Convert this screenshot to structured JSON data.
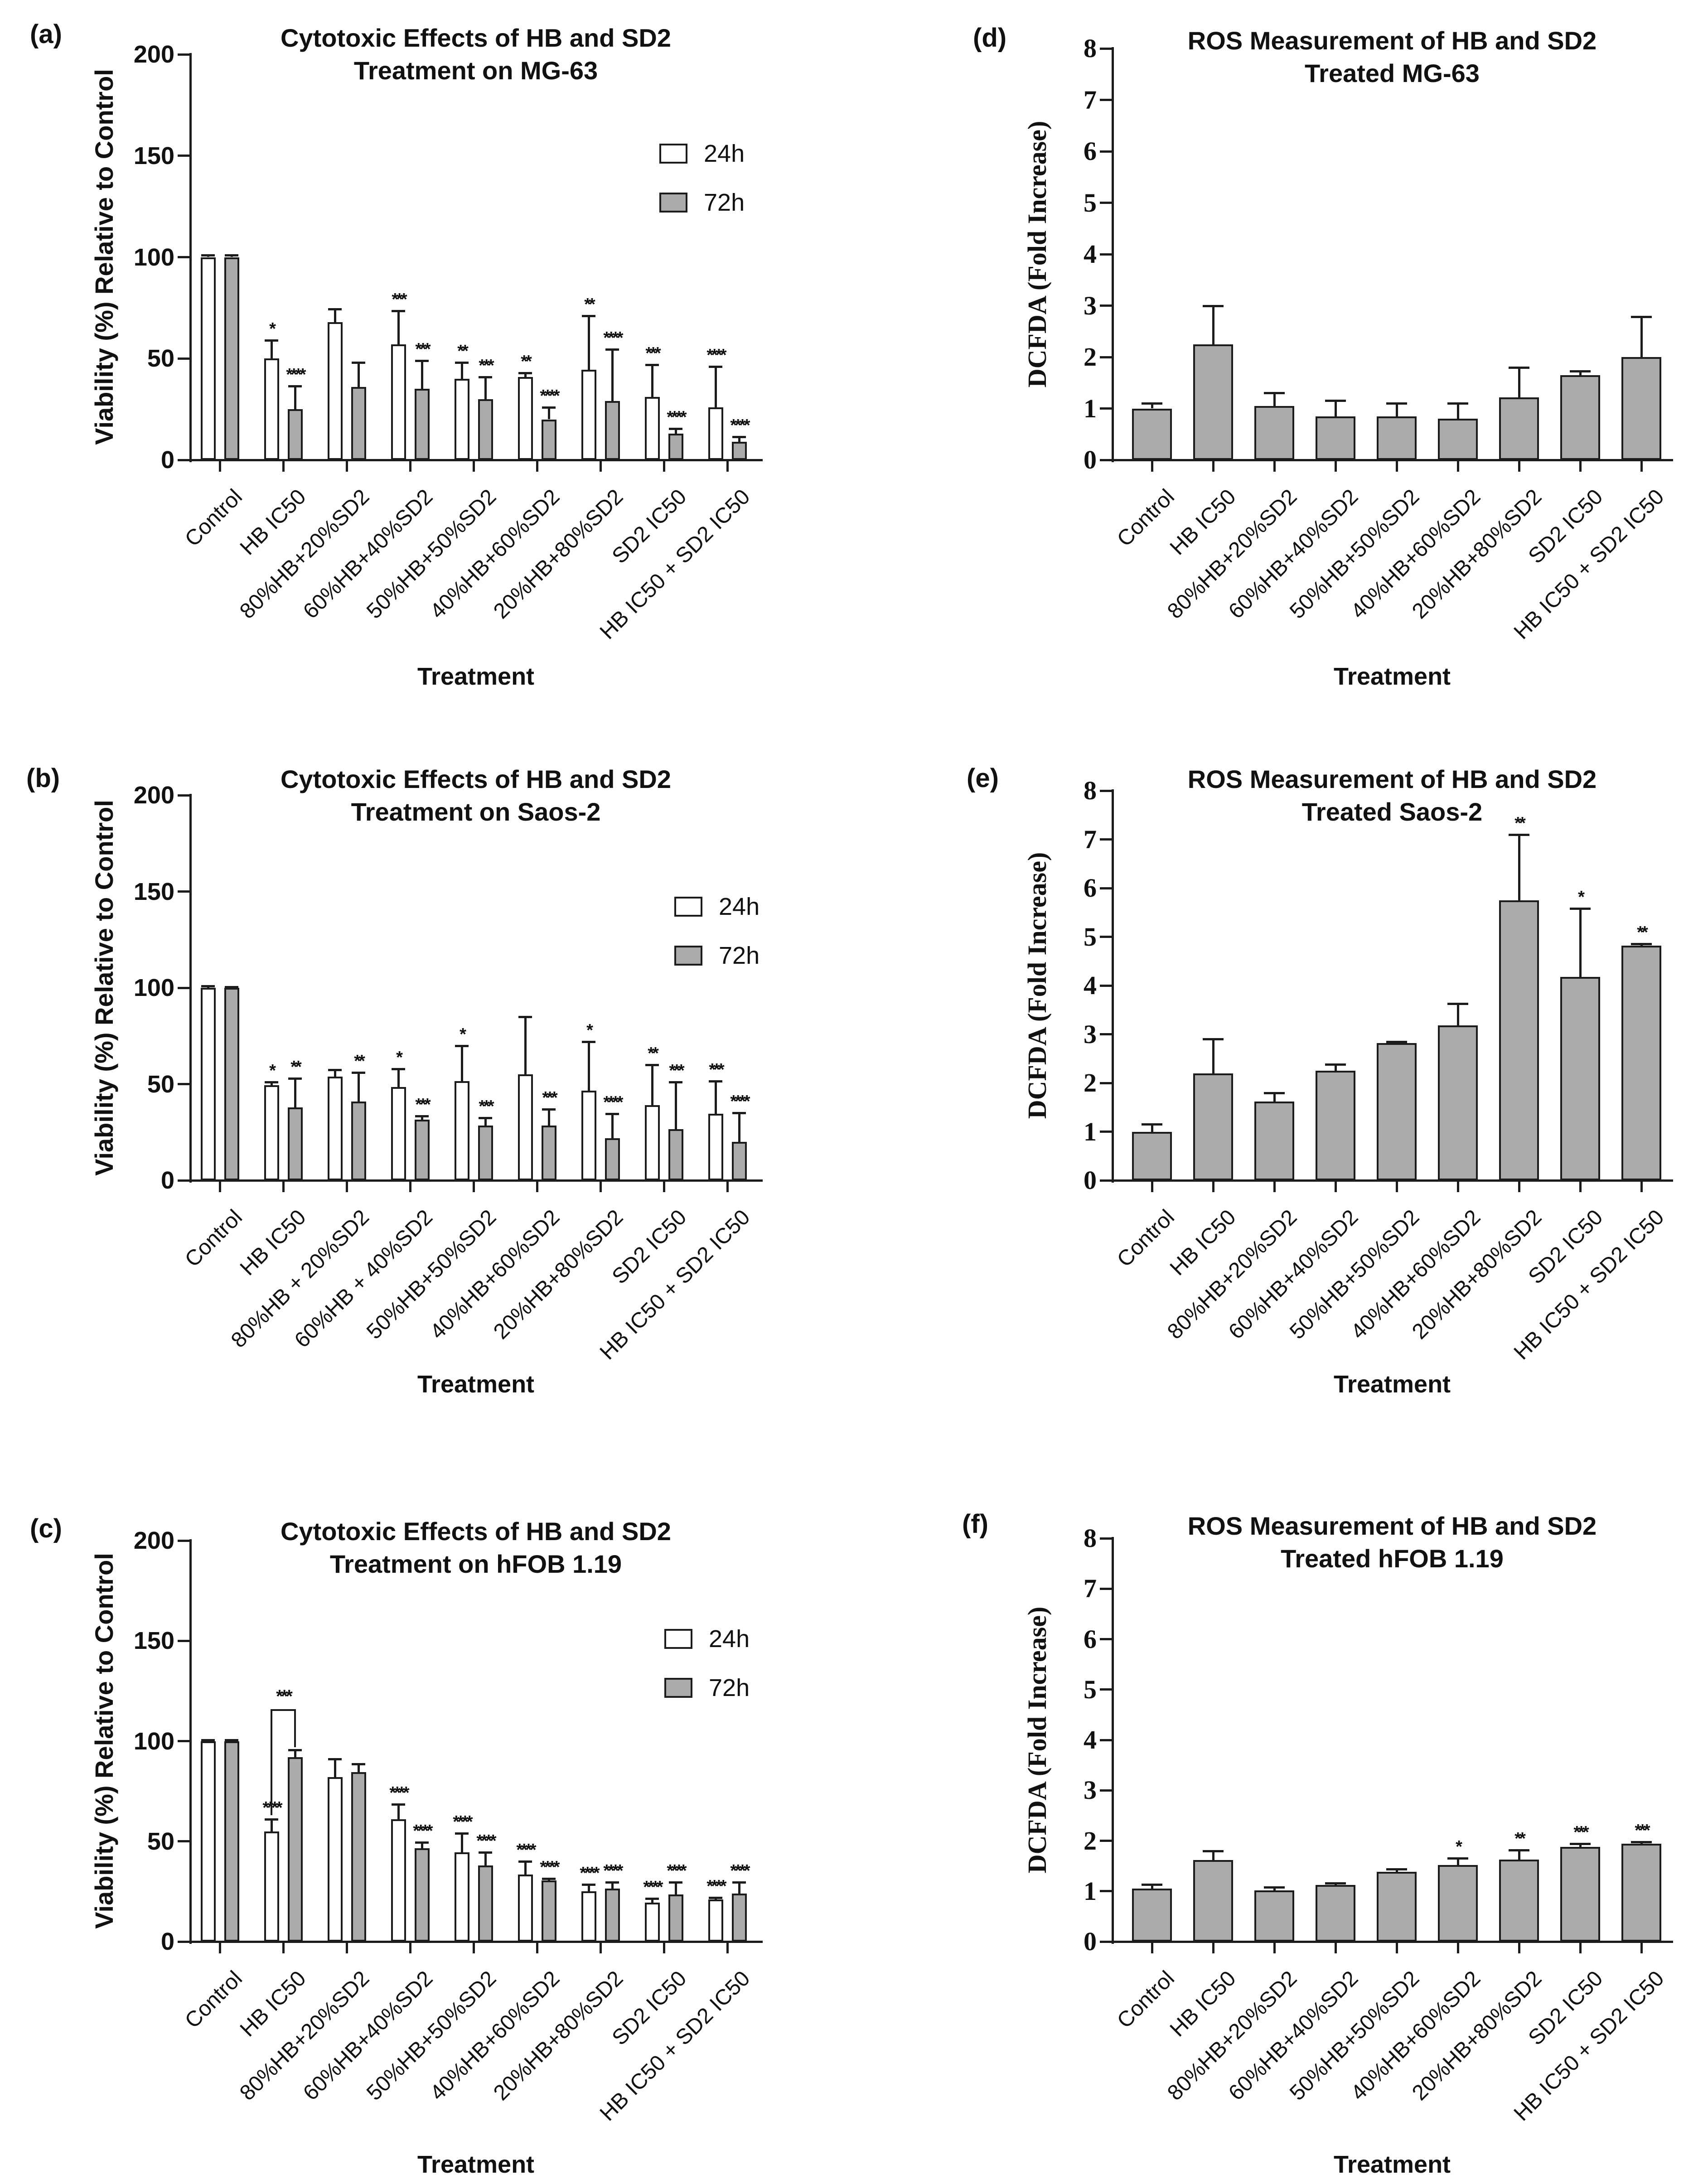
{
  "figure": {
    "background": "#ffffff",
    "colors": {
      "bar_gray": "#ababab",
      "bar_white": "#ffffff",
      "bar_border": "#1c1c1c",
      "axis": "#1c1c1c",
      "text": "#111111"
    },
    "legend": {
      "labels": [
        "24h",
        "72h"
      ]
    },
    "x_axis_title": "Treatment"
  },
  "chart_data": [
    {
      "id": "a",
      "panel_letter": "(a)",
      "type": "bar",
      "grouped": true,
      "title_lines": [
        "Cytotoxic Effects of HB and SD2",
        "Treatment on MG-63"
      ],
      "ylabel": "Viability (%) Relative to Control",
      "xlabel": "Treatment",
      "ylim": [
        0,
        200
      ],
      "yticks": [
        0,
        50,
        100,
        150,
        200
      ],
      "legend_position": "top-right-inside",
      "categories": [
        "Control",
        "HB IC50",
        "80%HB+20%SD2",
        "60%HB+40%SD2",
        "50%HB+50%SD2",
        "40%HB+60%SD2",
        "20%HB+80%SD2",
        "SD2 IC50",
        "HB IC50 + SD2 IC50"
      ],
      "series": [
        {
          "name": "24h",
          "fill": "#ffffff",
          "values": [
            100,
            50,
            68,
            57,
            40,
            41,
            44.5,
            31,
            26
          ],
          "errors": [
            1,
            9,
            6.5,
            16.5,
            8,
            2,
            26.5,
            16,
            20
          ],
          "sig": [
            "",
            "*",
            "",
            "***",
            "**",
            "**",
            "**",
            "***",
            "****"
          ]
        },
        {
          "name": "72h",
          "fill": "#ababab",
          "values": [
            100,
            25,
            36,
            35,
            30,
            20,
            29,
            13,
            9
          ],
          "errors": [
            1,
            11.5,
            12,
            14,
            11,
            6,
            25.5,
            2.5,
            2.5
          ],
          "sig": [
            "",
            "****",
            "",
            "***",
            "***",
            "****",
            "****",
            "****",
            "****"
          ]
        }
      ],
      "annotations": []
    },
    {
      "id": "b",
      "panel_letter": "(b)",
      "type": "bar",
      "grouped": true,
      "title_lines": [
        "Cytotoxic Effects of HB and SD2",
        "Treatment on Saos-2"
      ],
      "ylabel": "Viability (%) Relative to Control",
      "xlabel": "Treatment",
      "ylim": [
        0,
        200
      ],
      "yticks": [
        0,
        50,
        100,
        150,
        200
      ],
      "legend_position": "top-right-inside",
      "categories": [
        "Control",
        "HB IC50",
        "80%HB + 20%SD2",
        "60%HB + 40%SD2",
        "50%HB+50%SD2",
        "40%HB+60%SD2",
        "20%HB+80%SD2",
        "SD2 IC50",
        "HB IC50 + SD2 IC50"
      ],
      "series": [
        {
          "name": "24h",
          "fill": "#ffffff",
          "values": [
            100,
            49.5,
            54,
            48.5,
            51.5,
            55,
            46.5,
            39,
            34.5
          ],
          "errors": [
            1,
            1.5,
            3.5,
            9.5,
            18.5,
            30,
            25.5,
            21,
            17
          ],
          "sig": [
            "",
            "*",
            "",
            "*",
            "*",
            "",
            "*",
            "**",
            "***"
          ]
        },
        {
          "name": "72h",
          "fill": "#ababab",
          "values": [
            100,
            38,
            41,
            31.5,
            28.5,
            28.5,
            22,
            26.5,
            20
          ],
          "errors": [
            0.5,
            15,
            15,
            2,
            4,
            8.5,
            12.5,
            24.5,
            15
          ],
          "sig": [
            "",
            "**",
            "**",
            "***",
            "***",
            "***",
            "****",
            "***",
            "****"
          ]
        }
      ],
      "annotations": []
    },
    {
      "id": "c",
      "panel_letter": "(c)",
      "type": "bar",
      "grouped": true,
      "title_lines": [
        "Cytotoxic Effects of HB and SD2",
        "Treatment on hFOB 1.19"
      ],
      "ylabel": "Viability (%) Relative to Control",
      "xlabel": "Treatment",
      "ylim": [
        0,
        200
      ],
      "yticks": [
        0,
        50,
        100,
        150,
        200
      ],
      "legend_position": "top-right-inside",
      "categories": [
        "Control",
        "HB IC50",
        "80%HB+20%SD2",
        "60%HB+40%SD2",
        "50%HB+50%SD2",
        "40%HB+60%SD2",
        "20%HB+80%SD2",
        "SD2 IC50",
        "HB IC50 + SD2 IC50"
      ],
      "series": [
        {
          "name": "24h",
          "fill": "#ffffff",
          "values": [
            100,
            55,
            82,
            61,
            44.5,
            33.5,
            25,
            19.5,
            21
          ],
          "errors": [
            0.5,
            6,
            9,
            7.5,
            9.5,
            6.5,
            3.5,
            2,
            1
          ],
          "sig": [
            "",
            "****",
            "",
            "****",
            "****",
            "****",
            "****",
            "****",
            "****"
          ]
        },
        {
          "name": "72h",
          "fill": "#ababab",
          "values": [
            100,
            92,
            84.5,
            46.5,
            38,
            30.5,
            26.5,
            23.5,
            24
          ],
          "errors": [
            0.5,
            3.5,
            4,
            3,
            6.5,
            1,
            3,
            6,
            5.5
          ],
          "sig": [
            "",
            "",
            "",
            "****",
            "****",
            "****",
            "****",
            "****",
            "****"
          ]
        }
      ],
      "annotations": [
        {
          "type": "bracket",
          "category": 1,
          "label": "***",
          "y_top": 116,
          "y_from": 63,
          "y_to": 97
        }
      ]
    },
    {
      "id": "d",
      "panel_letter": "(d)",
      "type": "bar",
      "grouped": false,
      "title_lines": [
        "ROS Measurement of HB and SD2",
        "Treated MG-63"
      ],
      "ylabel": "DCFDA (Fold Increase)",
      "xlabel": "Treatment",
      "ylim": [
        0,
        8
      ],
      "yticks": [
        0,
        1,
        2,
        3,
        4,
        5,
        6,
        7,
        8
      ],
      "categories": [
        "Control",
        "HB IC50",
        "80%HB+20%SD2",
        "60%HB+40%SD2",
        "50%HB+50%SD2",
        "40%HB+60%SD2",
        "20%HB+80%SD2",
        "SD2 IC50",
        "HB IC50 + SD2 IC50"
      ],
      "series": [
        {
          "name": "DCFDA",
          "fill": "#ababab",
          "values": [
            1.0,
            2.25,
            1.05,
            0.85,
            0.85,
            0.8,
            1.22,
            1.65,
            2.0
          ],
          "errors": [
            0.1,
            0.75,
            0.25,
            0.3,
            0.25,
            0.3,
            0.58,
            0.08,
            0.78
          ],
          "sig": [
            "",
            "",
            "",
            "",
            "",
            "",
            "",
            "",
            ""
          ]
        }
      ],
      "annotations": []
    },
    {
      "id": "e",
      "panel_letter": "(e)",
      "type": "bar",
      "grouped": false,
      "title_lines": [
        "ROS Measurement of HB and SD2",
        "Treated Saos-2"
      ],
      "ylabel": "DCFDA (Fold Increase)",
      "xlabel": "Treatment",
      "ylim": [
        0,
        8
      ],
      "yticks": [
        0,
        1,
        2,
        3,
        4,
        5,
        6,
        7,
        8
      ],
      "categories": [
        "Control",
        "HB IC50",
        "80%HB+20%SD2",
        "60%HB+40%SD2",
        "50%HB+50%SD2",
        "40%HB+60%SD2",
        "20%HB+80%SD2",
        "SD2 IC50",
        "HB IC50 + SD2 IC50"
      ],
      "series": [
        {
          "name": "DCFDA",
          "fill": "#ababab",
          "values": [
            1.0,
            2.2,
            1.62,
            2.25,
            2.82,
            3.18,
            5.75,
            4.18,
            4.82
          ],
          "errors": [
            0.15,
            0.7,
            0.18,
            0.13,
            0.03,
            0.45,
            1.35,
            1.4,
            0.04
          ],
          "sig": [
            "",
            "",
            "",
            "",
            "",
            "",
            "**",
            "*",
            "**"
          ]
        }
      ],
      "annotations": []
    },
    {
      "id": "f",
      "panel_letter": "(f)",
      "type": "bar",
      "grouped": false,
      "title_lines": [
        "ROS Measurement of HB and SD2",
        "Treated hFOB 1.19"
      ],
      "ylabel": "DCFDA (Fold Increase)",
      "xlabel": "Treatment",
      "ylim": [
        0,
        8
      ],
      "yticks": [
        0,
        1,
        2,
        3,
        4,
        5,
        6,
        7,
        8
      ],
      "categories": [
        "Control",
        "HB IC50",
        "80%HB+20%SD2",
        "60%HB+40%SD2",
        "50%HB+50%SD2",
        "40%HB+60%SD2",
        "20%HB+80%SD2",
        "SD2 IC50",
        "HB IC50 + SD2 IC50"
      ],
      "series": [
        {
          "name": "DCFDA",
          "fill": "#ababab",
          "values": [
            1.05,
            1.62,
            1.02,
            1.12,
            1.38,
            1.52,
            1.63,
            1.88,
            1.94
          ],
          "errors": [
            0.08,
            0.18,
            0.06,
            0.04,
            0.06,
            0.13,
            0.19,
            0.06,
            0.04
          ],
          "sig": [
            "",
            "",
            "",
            "",
            "",
            "*",
            "**",
            "***",
            "***"
          ]
        }
      ],
      "annotations": []
    }
  ]
}
